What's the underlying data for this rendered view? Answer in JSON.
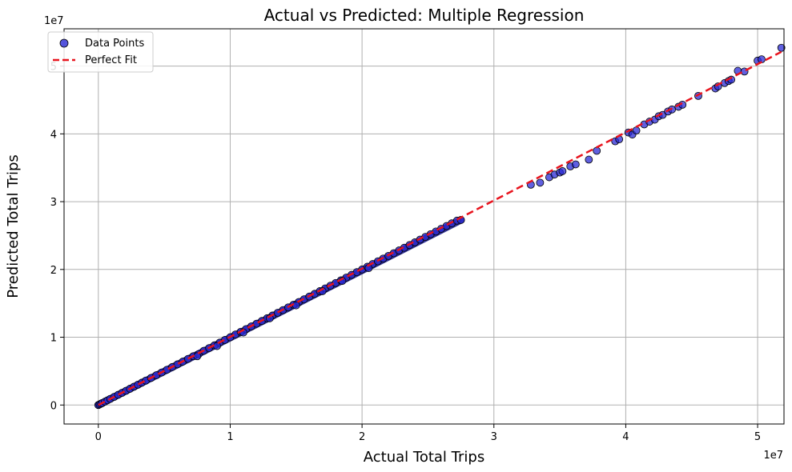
{
  "chart_data": {
    "type": "scatter",
    "title": "Actual vs Predicted: Multiple Regression",
    "xlabel": "Actual Total Trips",
    "ylabel": "Predicted Total Trips",
    "x_offset_label": "1e7",
    "y_offset_label": "1e7",
    "xlim": [
      -0.26,
      5.2
    ],
    "ylim": [
      -0.28,
      5.55
    ],
    "x_ticks": [
      0,
      1,
      2,
      3,
      4,
      5
    ],
    "y_ticks": [
      0,
      1,
      2,
      3,
      4,
      5
    ],
    "x_tick_labels": [
      "0",
      "1",
      "2",
      "3",
      "4",
      "5"
    ],
    "y_tick_labels": [
      "0",
      "1",
      "2",
      "3",
      "4",
      "5"
    ],
    "grid": true,
    "legend_position": "top-left",
    "series": [
      {
        "name": "Data Points",
        "kind": "scatter",
        "color": "#2b2bd6",
        "edge_color": "#000000",
        "points": [
          [
            0.0,
            0.0
          ],
          [
            0.01,
            0.01
          ],
          [
            0.02,
            0.02
          ],
          [
            0.03,
            0.03
          ],
          [
            0.05,
            0.05
          ],
          [
            0.07,
            0.07
          ],
          [
            0.09,
            0.09
          ],
          [
            0.12,
            0.12
          ],
          [
            0.15,
            0.15
          ],
          [
            0.18,
            0.18
          ],
          [
            0.21,
            0.21
          ],
          [
            0.24,
            0.24
          ],
          [
            0.27,
            0.27
          ],
          [
            0.3,
            0.3
          ],
          [
            0.33,
            0.33
          ],
          [
            0.36,
            0.36
          ],
          [
            0.4,
            0.4
          ],
          [
            0.44,
            0.44
          ],
          [
            0.48,
            0.48
          ],
          [
            0.52,
            0.52
          ],
          [
            0.56,
            0.56
          ],
          [
            0.6,
            0.6
          ],
          [
            0.64,
            0.64
          ],
          [
            0.68,
            0.68
          ],
          [
            0.72,
            0.72
          ],
          [
            0.76,
            0.75
          ],
          [
            0.8,
            0.8
          ],
          [
            0.84,
            0.84
          ],
          [
            0.88,
            0.88
          ],
          [
            0.92,
            0.92
          ],
          [
            0.96,
            0.96
          ],
          [
            1.0,
            1.0
          ],
          [
            1.04,
            1.04
          ],
          [
            1.08,
            1.08
          ],
          [
            1.12,
            1.12
          ],
          [
            1.16,
            1.16
          ],
          [
            1.2,
            1.2
          ],
          [
            1.24,
            1.24
          ],
          [
            1.28,
            1.28
          ],
          [
            1.32,
            1.32
          ],
          [
            1.36,
            1.36
          ],
          [
            1.4,
            1.4
          ],
          [
            1.44,
            1.44
          ],
          [
            1.48,
            1.48
          ],
          [
            1.52,
            1.52
          ],
          [
            1.56,
            1.56
          ],
          [
            1.6,
            1.6
          ],
          [
            1.64,
            1.64
          ],
          [
            1.68,
            1.68
          ],
          [
            1.72,
            1.72
          ],
          [
            1.76,
            1.76
          ],
          [
            1.8,
            1.8
          ],
          [
            1.84,
            1.84
          ],
          [
            1.88,
            1.88
          ],
          [
            1.92,
            1.92
          ],
          [
            1.96,
            1.96
          ],
          [
            2.0,
            2.0
          ],
          [
            2.04,
            2.04
          ],
          [
            2.08,
            2.08
          ],
          [
            2.12,
            2.12
          ],
          [
            2.16,
            2.16
          ],
          [
            2.2,
            2.2
          ],
          [
            2.24,
            2.24
          ],
          [
            2.28,
            2.28
          ],
          [
            2.32,
            2.32
          ],
          [
            2.36,
            2.36
          ],
          [
            2.4,
            2.4
          ],
          [
            2.44,
            2.44
          ],
          [
            2.48,
            2.48
          ],
          [
            2.52,
            2.52
          ],
          [
            2.56,
            2.56
          ],
          [
            2.6,
            2.6
          ],
          [
            2.64,
            2.64
          ],
          [
            2.68,
            2.68
          ],
          [
            2.72,
            2.72
          ],
          [
            2.75,
            2.73
          ],
          [
            0.75,
            0.72
          ],
          [
            0.9,
            0.87
          ],
          [
            1.1,
            1.07
          ],
          [
            1.3,
            1.28
          ],
          [
            1.5,
            1.47
          ],
          [
            1.7,
            1.68
          ],
          [
            1.85,
            1.83
          ],
          [
            2.05,
            2.02
          ],
          [
            3.28,
            3.25
          ],
          [
            3.35,
            3.28
          ],
          [
            3.42,
            3.36
          ],
          [
            3.46,
            3.4
          ],
          [
            3.5,
            3.43
          ],
          [
            3.52,
            3.45
          ],
          [
            3.58,
            3.52
          ],
          [
            3.62,
            3.55
          ],
          [
            3.72,
            3.62
          ],
          [
            3.78,
            3.75
          ],
          [
            3.92,
            3.89
          ],
          [
            3.95,
            3.92
          ],
          [
            4.02,
            4.02
          ],
          [
            4.05,
            3.99
          ],
          [
            4.08,
            4.05
          ],
          [
            4.14,
            4.14
          ],
          [
            4.18,
            4.18
          ],
          [
            4.22,
            4.21
          ],
          [
            4.25,
            4.26
          ],
          [
            4.28,
            4.28
          ],
          [
            4.32,
            4.33
          ],
          [
            4.35,
            4.36
          ],
          [
            4.4,
            4.4
          ],
          [
            4.43,
            4.43
          ],
          [
            4.55,
            4.56
          ],
          [
            4.68,
            4.67
          ],
          [
            4.7,
            4.7
          ],
          [
            4.75,
            4.75
          ],
          [
            4.78,
            4.78
          ],
          [
            4.8,
            4.8
          ],
          [
            4.85,
            4.93
          ],
          [
            4.9,
            4.92
          ],
          [
            5.0,
            5.08
          ],
          [
            5.03,
            5.1
          ],
          [
            5.18,
            5.27
          ]
        ]
      },
      {
        "name": "Perfect Fit",
        "kind": "line",
        "color": "#e8141e",
        "style": "dashed",
        "points": [
          [
            0,
            0
          ],
          [
            5.18,
            5.21
          ]
        ]
      }
    ]
  }
}
